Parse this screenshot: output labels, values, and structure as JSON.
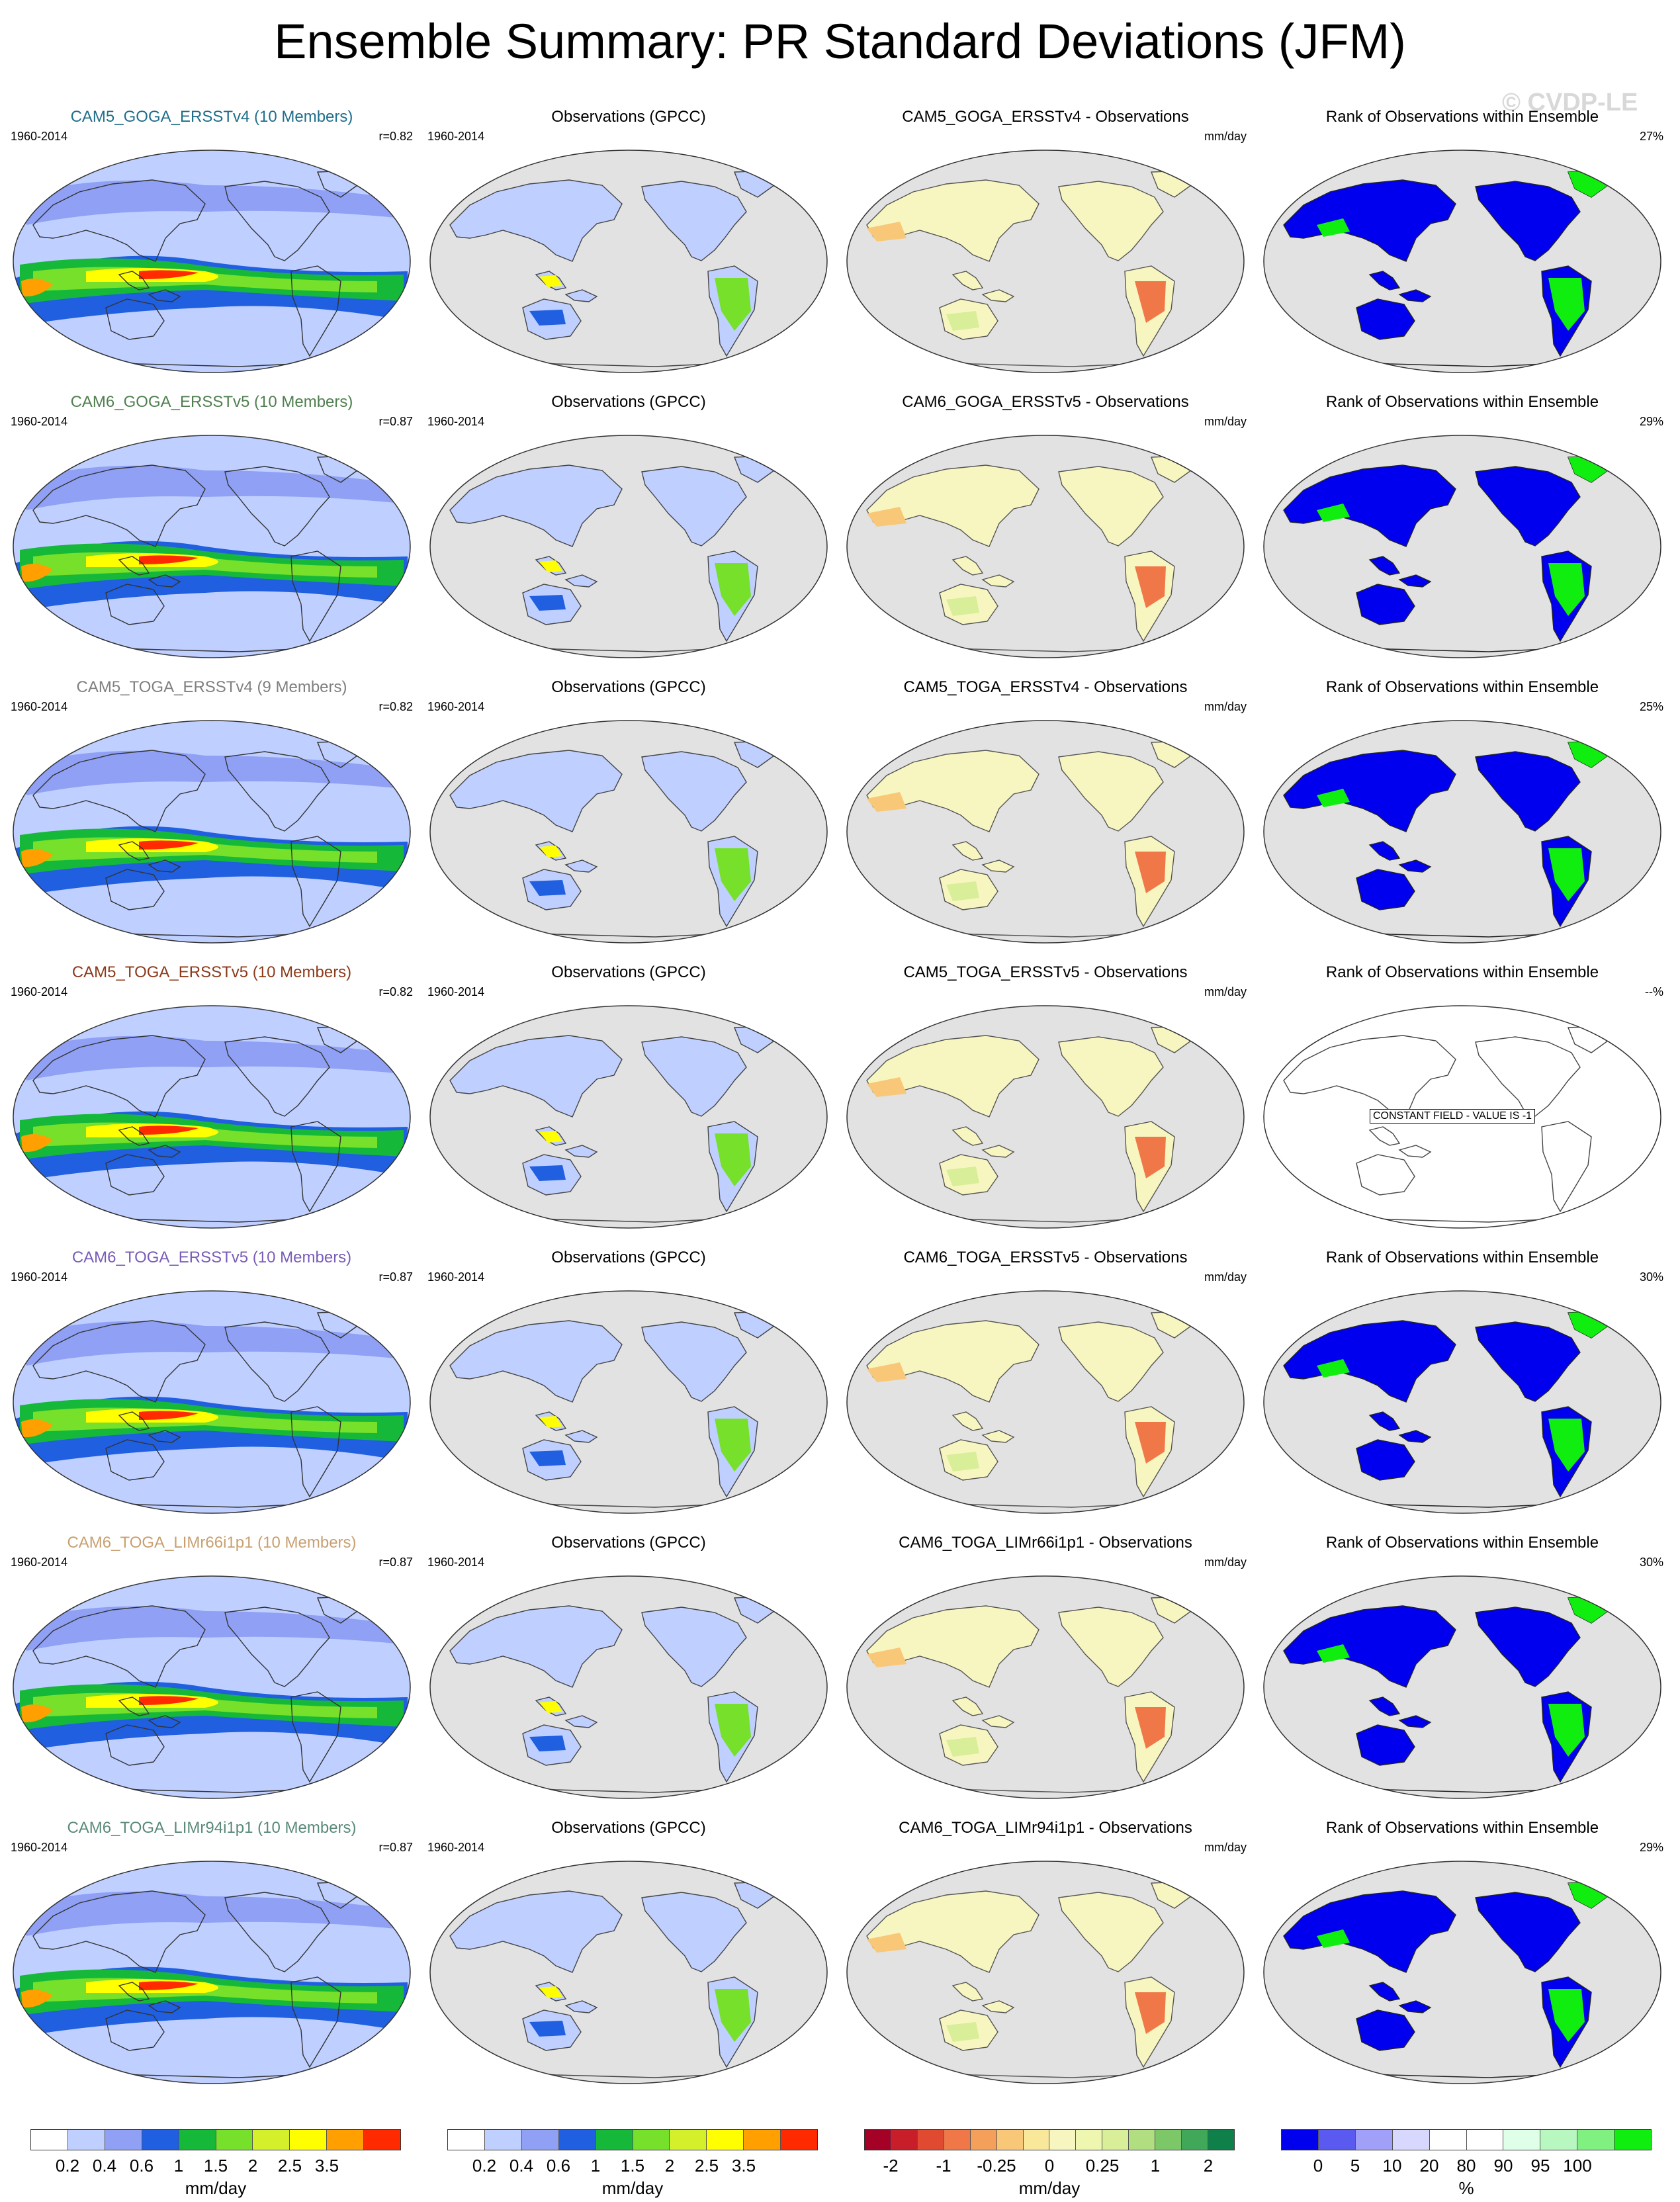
{
  "title": "Ensemble Summary: PR Standard Deviations (JFM)",
  "watermark": "© CVDP-LE",
  "rows": [
    {
      "name": "CAM5_GOGA_ERSSTv4 (10 Members)",
      "color": "#1f6f8b",
      "period": "1960-2014",
      "r": "r=0.82",
      "diff_title": "CAM5_GOGA_ERSSTv4 - Observations",
      "rank_pct": "27%",
      "rank_constant": false
    },
    {
      "name": "CAM6_GOGA_ERSSTv5 (10 Members)",
      "color": "#4f7f4f",
      "period": "1960-2014",
      "r": "r=0.87",
      "diff_title": "CAM6_GOGA_ERSSTv5 - Observations",
      "rank_pct": "29%",
      "rank_constant": false
    },
    {
      "name": "CAM5_TOGA_ERSSTv4 (9 Members)",
      "color": "#808080",
      "period": "1960-2014",
      "r": "r=0.82",
      "diff_title": "CAM5_TOGA_ERSSTv4 - Observations",
      "rank_pct": "25%",
      "rank_constant": false
    },
    {
      "name": "CAM5_TOGA_ERSSTv5 (10 Members)",
      "color": "#8b3a1a",
      "period": "1960-2014",
      "r": "r=0.82",
      "diff_title": "CAM5_TOGA_ERSSTv5 - Observations",
      "rank_pct": "--%",
      "rank_constant": true
    },
    {
      "name": "CAM6_TOGA_ERSSTv5 (10 Members)",
      "color": "#7a5cb8",
      "period": "1960-2014",
      "r": "r=0.87",
      "diff_title": "CAM6_TOGA_ERSSTv5 - Observations",
      "rank_pct": "30%",
      "rank_constant": false
    },
    {
      "name": "CAM6_TOGA_LIMr66i1p1 (10 Members)",
      "color": "#c8a070",
      "period": "1960-2014",
      "r": "r=0.87",
      "diff_title": "CAM6_TOGA_LIMr66i1p1 - Observations",
      "rank_pct": "30%",
      "rank_constant": false
    },
    {
      "name": "CAM6_TOGA_LIMr94i1p1 (10 Members)",
      "color": "#5a8a7a",
      "period": "1960-2014",
      "r": "r=0.87",
      "diff_title": "CAM6_TOGA_LIMr94i1p1 - Observations",
      "rank_pct": "29%",
      "rank_constant": false
    }
  ],
  "obs_title": "Observations (GPCC)",
  "obs_period": "1960-2014",
  "diff_units": "mm/day",
  "rank_title": "Rank of Observations within Ensemble",
  "constant_label": "CONSTANT FIELD - VALUE IS -1",
  "colorbars": [
    {
      "unit": "mm/day",
      "colors": [
        "#ffffff",
        "#bfcfff",
        "#8fa0f5",
        "#1f5fe0",
        "#16b83a",
        "#76e02a",
        "#d4f02a",
        "#ffff00",
        "#ffa000",
        "#ff2a00"
      ],
      "labels": [
        "0.2",
        "0.4",
        "0.6",
        "1",
        "1.5",
        "2",
        "2.5",
        "3.5"
      ]
    },
    {
      "unit": "mm/day",
      "colors": [
        "#ffffff",
        "#bfcfff",
        "#8fa0f5",
        "#1f5fe0",
        "#16b83a",
        "#76e02a",
        "#d4f02a",
        "#ffff00",
        "#ffa000",
        "#ff2a00"
      ],
      "labels": [
        "0.2",
        "0.4",
        "0.6",
        "1",
        "1.5",
        "2",
        "2.5",
        "3.5"
      ]
    },
    {
      "unit": "mm/day",
      "colors": [
        "#a50026",
        "#c81e2a",
        "#e04a30",
        "#f07848",
        "#f4a05a",
        "#f8c878",
        "#fae89a",
        "#f8f6c0",
        "#eef6b0",
        "#d8ee98",
        "#b0de80",
        "#7cc868",
        "#40a858",
        "#10804a"
      ],
      "labels": [
        "-2",
        "-1",
        "-0.25",
        "0",
        "0.25",
        "1",
        "2"
      ]
    },
    {
      "unit": "%",
      "colors": [
        "#0000ee",
        "#5a5af0",
        "#a0a0f8",
        "#d8d8ff",
        "#ffffff",
        "#ffffff",
        "#e0ffe8",
        "#b8f8c0",
        "#80f080",
        "#10ee10"
      ],
      "labels": [
        "0",
        "5",
        "10",
        "20",
        "80",
        "90",
        "95",
        "100"
      ]
    }
  ]
}
